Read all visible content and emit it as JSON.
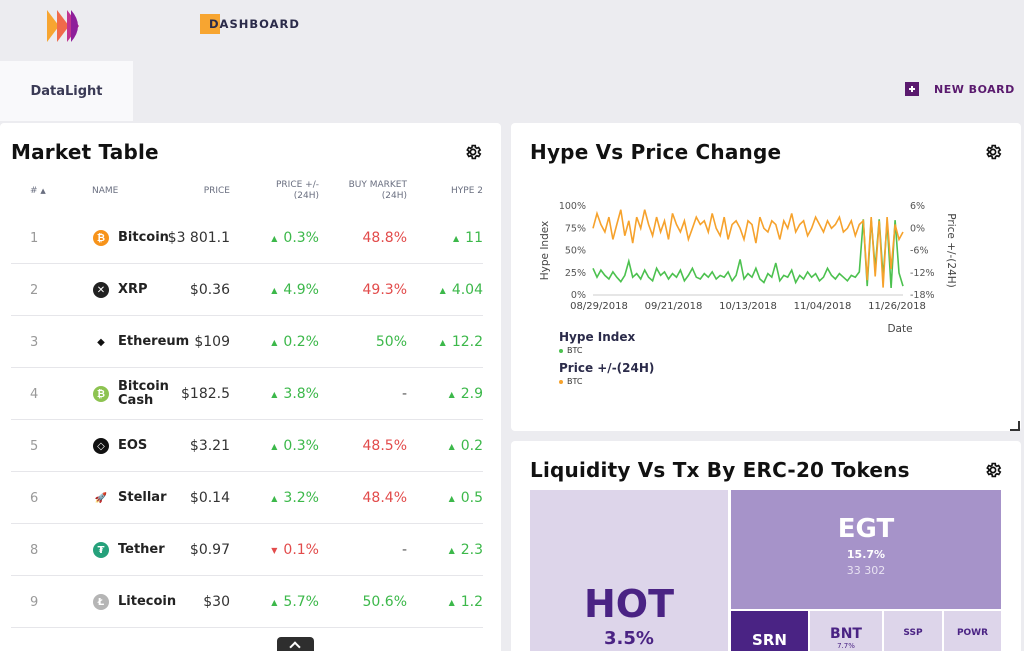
{
  "header": {
    "nav_tab": "DASHBOARD",
    "board_tab": "DataLight",
    "new_board": "NEW BOARD"
  },
  "market": {
    "title": "Market Table",
    "columns": {
      "rank": "#",
      "name": "NAME",
      "price": "PRICE",
      "change_1": "PRICE +/-",
      "change_2": "(24H)",
      "buy_1": "BUY MARKET",
      "buy_2": "(24H)",
      "hype": "HYPE 2"
    },
    "rows": [
      {
        "rank": "1",
        "name": "Bitcoin",
        "icon": "bitcoin-icon",
        "icon_color": "#f7931a",
        "glyph": "₿",
        "price": "$3 801.1",
        "change": "0.3%",
        "dir": "up",
        "buy": "48.8%",
        "buy_tone": "red",
        "hype": "11",
        "hype_dir": "up"
      },
      {
        "rank": "2",
        "name": "XRP",
        "icon": "xrp-icon",
        "icon_color": "#222222",
        "glyph": "✕",
        "price": "$0.36",
        "change": "4.9%",
        "dir": "up",
        "buy": "49.3%",
        "buy_tone": "red",
        "hype": "4.04",
        "hype_dir": "up"
      },
      {
        "rank": "3",
        "name": "Ethereum",
        "icon": "ethereum-icon",
        "icon_color": "#ffffff",
        "glyph": "◆",
        "price": "$109",
        "change": "0.2%",
        "dir": "up",
        "buy": "50%",
        "buy_tone": "green",
        "hype": "12.2",
        "hype_dir": "up"
      },
      {
        "rank": "4",
        "name": "Bitcoin Cash",
        "icon": "bitcoin-cash-icon",
        "icon_color": "#8dc351",
        "glyph": "₿",
        "price": "$182.5",
        "change": "3.8%",
        "dir": "up",
        "buy": "-",
        "buy_tone": "neutral",
        "hype": "2.9",
        "hype_dir": "up"
      },
      {
        "rank": "5",
        "name": "EOS",
        "icon": "eos-icon",
        "icon_color": "#111111",
        "glyph": "◇",
        "price": "$3.21",
        "change": "0.3%",
        "dir": "up",
        "buy": "48.5%",
        "buy_tone": "red",
        "hype": "0.2",
        "hype_dir": "up"
      },
      {
        "rank": "6",
        "name": "Stellar",
        "icon": "stellar-rocket-icon",
        "icon_color": "#ffffff",
        "glyph": "🚀",
        "price": "$0.14",
        "change": "3.2%",
        "dir": "up",
        "buy": "48.4%",
        "buy_tone": "red",
        "hype": "0.5",
        "hype_dir": "up"
      },
      {
        "rank": "8",
        "name": "Tether",
        "icon": "tether-icon",
        "icon_color": "#26a17b",
        "glyph": "₮",
        "price": "$0.97",
        "change": "0.1%",
        "dir": "down",
        "buy": "-",
        "buy_tone": "neutral",
        "hype": "2.3",
        "hype_dir": "up"
      },
      {
        "rank": "9",
        "name": "Litecoin",
        "icon": "litecoin-icon",
        "icon_color": "#b5b5b5",
        "glyph": "Ł",
        "price": "$30",
        "change": "5.7%",
        "dir": "up",
        "buy": "50.6%",
        "buy_tone": "green",
        "hype": "1.2",
        "hype_dir": "up"
      }
    ]
  },
  "hype_chart": {
    "title": "Hype Vs Price Change",
    "legend_hype": "Hype Index",
    "legend_price": "Price +/-(24H)",
    "series_label": "BTC",
    "colors": {
      "hype": "#4cc14f",
      "price": "#f6a22c"
    }
  },
  "chart_data": {
    "type": "line",
    "title": "Hype Vs Price Change",
    "xlabel": "Date",
    "ylabel": "Hype Index",
    "y2label": "Price +/-(24H)",
    "x_ticks": [
      "08/29/2018",
      "09/21/2018",
      "10/13/2018",
      "11/04/2018",
      "11/26/2018"
    ],
    "y_ticks": [
      "100%",
      "75%",
      "50%",
      "25%",
      "0%"
    ],
    "y2_ticks": [
      "6%",
      "0%",
      "-6%",
      "-12%",
      "-18%"
    ],
    "ylim": [
      0,
      100
    ],
    "y2lim": [
      -18,
      6
    ],
    "series": [
      {
        "name": "BTC",
        "axis": "left",
        "color": "#4cc14f",
        "values": [
          30,
          20,
          28,
          22,
          18,
          26,
          20,
          15,
          22,
          38,
          20,
          24,
          18,
          28,
          20,
          16,
          30,
          22,
          26,
          18,
          24,
          20,
          28,
          16,
          22,
          30,
          20,
          18,
          24,
          20,
          26,
          18,
          22,
          20,
          26,
          16,
          22,
          40,
          18,
          24,
          20,
          30,
          18,
          14,
          24,
          20,
          36,
          16,
          22,
          20,
          28,
          14,
          22,
          18,
          26,
          20,
          24,
          16,
          20,
          30,
          22,
          18,
          24,
          20,
          16,
          22,
          20,
          26,
          85,
          10,
          84,
          30,
          85,
          20,
          82,
          8,
          84,
          25,
          10
        ]
      },
      {
        "name": "BTC",
        "axis": "right",
        "color": "#f6a22c",
        "values": [
          0,
          4,
          1,
          -1,
          3,
          -3,
          1,
          5,
          -2,
          2,
          -4,
          3,
          0,
          5,
          1,
          -2,
          3,
          -1,
          2,
          -3,
          4,
          1,
          -1,
          2,
          -3,
          0,
          3,
          1,
          2,
          -1,
          4,
          0,
          -2,
          3,
          -3,
          1,
          2,
          0,
          -3,
          2,
          1,
          -4,
          3,
          0,
          -1,
          2,
          1,
          -3,
          2,
          0,
          4,
          -1,
          1,
          2,
          -2,
          0,
          3,
          1,
          -1,
          2,
          0,
          1,
          3,
          -1,
          0,
          2,
          -2,
          1,
          2,
          -14,
          3,
          -13,
          2,
          -16,
          3,
          -11,
          1,
          -3,
          -1
        ]
      }
    ]
  },
  "liquidity": {
    "title": "Liquidity Vs Tx By ERC-20 Tokens",
    "tiles": [
      {
        "name": "HOT",
        "pct": "3.5%",
        "value": ""
      },
      {
        "name": "EGT",
        "pct": "15.7%",
        "value": "33 302"
      },
      {
        "name": "SRN",
        "pct": "",
        "value": ""
      },
      {
        "name": "BNT",
        "pct": "7.7%",
        "value": ""
      },
      {
        "name": "SSP",
        "pct": "",
        "value": ""
      },
      {
        "name": "POWR",
        "pct": "",
        "value": ""
      }
    ]
  }
}
